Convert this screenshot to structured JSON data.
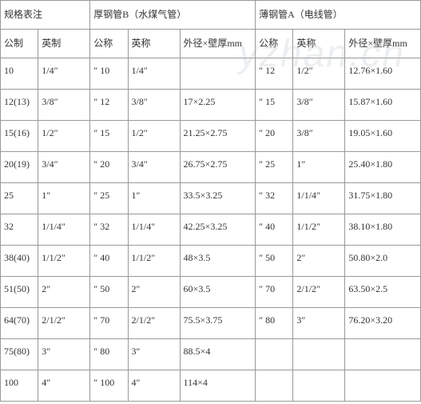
{
  "watermark": "yzhan.cn",
  "group_headers": {
    "groupA": "规格表注",
    "groupB": "厚钢管B（水煤气管）",
    "groupC": "薄钢管A（电线管）"
  },
  "sub_headers": {
    "a1": "公制",
    "a2": "英制",
    "b1": "公称",
    "b2": "英称",
    "b3": "外径×壁厚mm",
    "c1": "公称",
    "c2": "英称",
    "c3": "外径×壁厚mm"
  },
  "rows": [
    {
      "a1": "10",
      "a2": "1/4″",
      "b1": "″ 10",
      "b2": "1/4″",
      "b3": "",
      "c1": "″ 12",
      "c2": "1/2″",
      "c3": "12.76×1.60"
    },
    {
      "a1": "12(13)",
      "a2": "3/8″",
      "b1": "″ 12",
      "b2": "3/8″",
      "b3": "17×2.25",
      "c1": "″ 15",
      "c2": "3/8″",
      "c3": "15.87×1.60"
    },
    {
      "a1": "15(16)",
      "a2": "1/2″",
      "b1": "″ 15",
      "b2": "1/2″",
      "b3": "21.25×2.75",
      "c1": "″ 20",
      "c2": "3/8″",
      "c3": "19.05×1.60"
    },
    {
      "a1": "20(19)",
      "a2": "3/4″",
      "b1": "″ 20",
      "b2": "3/4″",
      "b3": "26.75×2.75",
      "c1": "″ 25",
      "c2": "1″",
      "c3": "25.40×1.80"
    },
    {
      "a1": "25",
      "a2": "1″",
      "b1": "″ 25",
      "b2": "1″",
      "b3": "33.5×3.25",
      "c1": "″ 32",
      "c2": "1/1/4″",
      "c3": "31.75×1.80"
    },
    {
      "a1": "32",
      "a2": "1/1/4″",
      "b1": "″ 32",
      "b2": "1/1/4″",
      "b3": "42.25×3.25",
      "c1": "″ 40",
      "c2": "1/1/2″",
      "c3": "38.10×1.80"
    },
    {
      "a1": "38(40)",
      "a2": "1/1/2″",
      "b1": "″ 40",
      "b2": "1/1/2″",
      "b3": "48×3.5",
      "c1": "″ 50",
      "c2": "2″",
      "c3": "50.80×2.0"
    },
    {
      "a1": "51(50)",
      "a2": "2″",
      "b1": "″ 50",
      "b2": "2″",
      "b3": "60×3.5",
      "c1": "″ 70",
      "c2": "2/1/2″",
      "c3": "63.50×2.5"
    },
    {
      "a1": "64(70)",
      "a2": "2/1/2″",
      "b1": "″ 70",
      "b2": "2/1/2″",
      "b3": "75.5×3.75",
      "c1": "″ 80",
      "c2": "3″",
      "c3": "76.20×3.20"
    },
    {
      "a1": "75(80)",
      "a2": "3″",
      "b1": "″ 80",
      "b2": "3″",
      "b3": "88.5×4",
      "c1": "",
      "c2": "",
      "c3": ""
    },
    {
      "a1": "100",
      "a2": "4″",
      "b1": "″ 100",
      "b2": "4″",
      "b3": "114×4",
      "c1": "",
      "c2": "",
      "c3": ""
    }
  ],
  "styles": {
    "border_color": "#999999",
    "font_size": 12,
    "text_color": "#333333",
    "background": "#ffffff",
    "watermark_color": "rgba(180,190,200,0.25)"
  }
}
